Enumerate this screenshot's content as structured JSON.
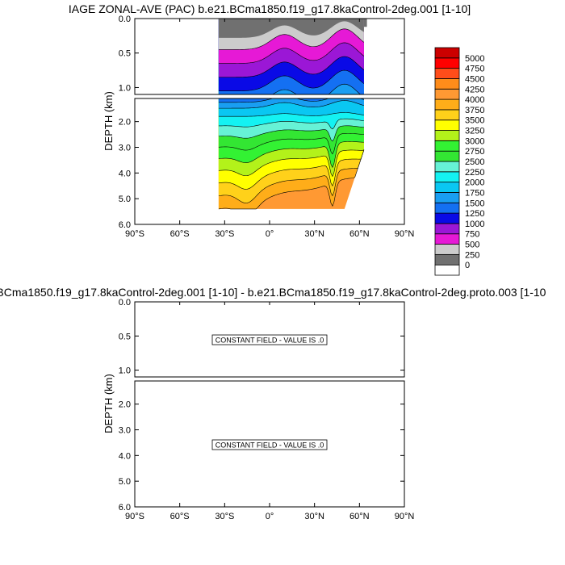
{
  "chart_data": [
    {
      "type": "heatmap",
      "title": "IAGE ZONAL-AVE (PAC) b.e21.BCma1850.f19_g17.8kaControl-2deg.001 [1-10]",
      "xlabel": "",
      "ylabel": "DEPTH (km)",
      "xlim": [
        -90,
        90
      ],
      "ylim": [
        0,
        6
      ],
      "x_ticks": [
        "90°S",
        "60°S",
        "30°S",
        "0°",
        "30°N",
        "60°N",
        "90°N"
      ],
      "y_ticks_top": [
        "0.0",
        "0.5",
        "1.0"
      ],
      "y_ticks_bottom": [
        "2.0",
        "3.0",
        "4.0",
        "5.0",
        "6.0"
      ],
      "data_extent": {
        "lat_min": -34,
        "lat_max": 63,
        "depth_max_km": 5.4
      },
      "colorbar": {
        "levels": [
          "0",
          "250",
          "500",
          "750",
          "1000",
          "1250",
          "1500",
          "1750",
          "2000",
          "2250",
          "2500",
          "2750",
          "3000",
          "3250",
          "3500",
          "3750",
          "4000",
          "4250",
          "4500",
          "4750",
          "5000"
        ],
        "colors": [
          "#ffffff",
          "#707070",
          "#cccccc",
          "#e619d6",
          "#9b17d6",
          "#0a0ae6",
          "#1470f2",
          "#199ef2",
          "#0ac7f2",
          "#14f2f2",
          "#66f2d6",
          "#33e633",
          "#33f233",
          "#b3f21a",
          "#ffff00",
          "#ffd11a",
          "#ffad19",
          "#ff9933",
          "#ff8c1a",
          "#ff4d1a",
          "#ff0000",
          "#cc0000"
        ]
      },
      "profile_levels": [
        {
          "age": 250,
          "color": "#cccccc"
        },
        {
          "age": 500,
          "color": "#e619d6"
        },
        {
          "age": 750,
          "color": "#9b17d6"
        },
        {
          "age": 1000,
          "color": "#0a0ae6"
        },
        {
          "age": 1250,
          "color": "#1470f2"
        },
        {
          "age": 1500,
          "color": "#199ef2"
        },
        {
          "age": 1750,
          "color": "#0ac7f2"
        },
        {
          "age": 2000,
          "color": "#14f2f2"
        },
        {
          "age": 2250,
          "color": "#66f2d6"
        },
        {
          "age": 2500,
          "color": "#33e633"
        },
        {
          "age": 2750,
          "color": "#33f233"
        },
        {
          "age": 3000,
          "color": "#b3f21a"
        },
        {
          "age": 3250,
          "color": "#ffff00"
        },
        {
          "age": 3500,
          "color": "#ffd11a"
        },
        {
          "age": 3750,
          "color": "#ffad19"
        },
        {
          "age": 4000,
          "color": "#ff9933"
        }
      ]
    },
    {
      "type": "heatmap",
      "title": ".BCma1850.f19_g17.8kaControl-2deg.001 [1-10] - b.e21.BCma1850.f19_g17.8kaControl-2deg.proto.003 [1-10",
      "xlabel": "",
      "ylabel": "DEPTH (km)",
      "xlim": [
        -90,
        90
      ],
      "ylim": [
        0,
        6
      ],
      "x_ticks": [
        "90°S",
        "60°S",
        "30°S",
        "0°",
        "30°N",
        "60°N",
        "90°N"
      ],
      "y_ticks_top": [
        "0.0",
        "0.5",
        "1.0"
      ],
      "y_ticks_bottom": [
        "2.0",
        "3.0",
        "4.0",
        "5.0",
        "6.0"
      ],
      "annotation_top": "CONSTANT FIELD - VALUE IS .0",
      "annotation_bottom": "CONSTANT FIELD - VALUE IS .0"
    }
  ]
}
